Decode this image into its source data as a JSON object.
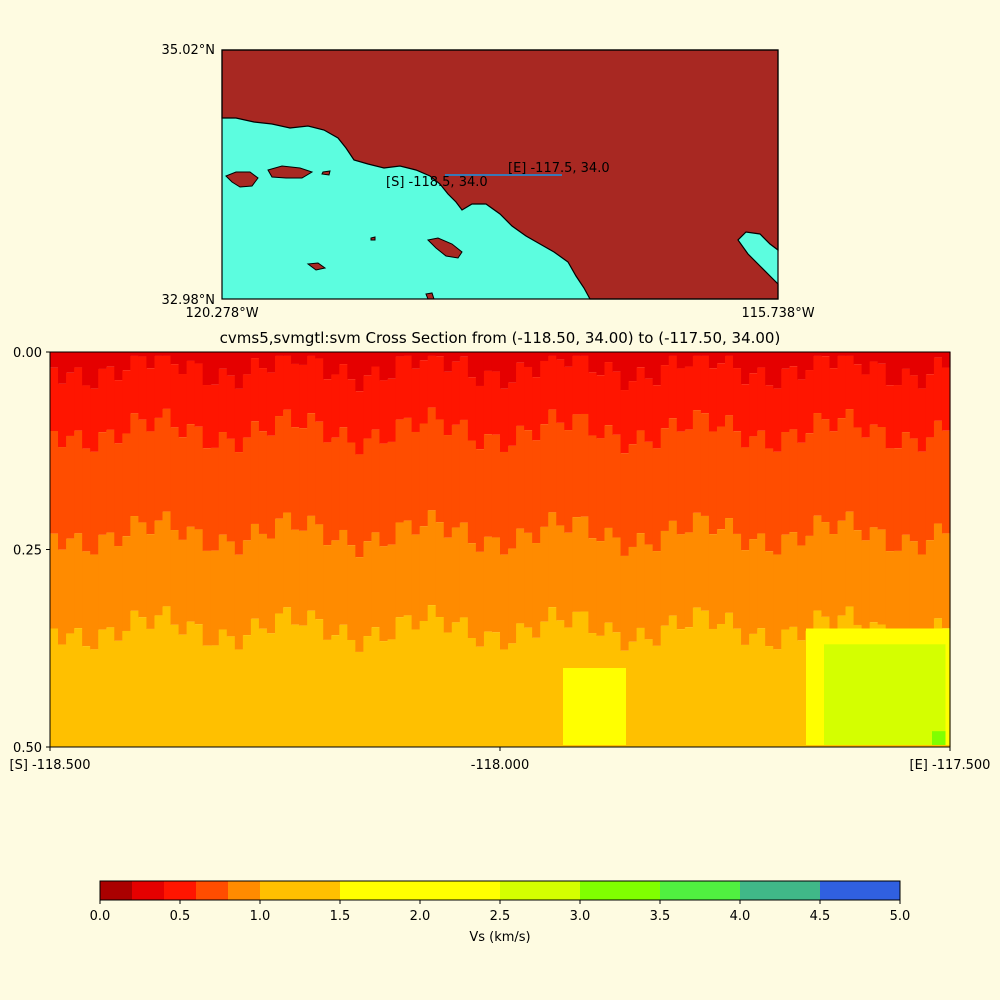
{
  "map": {
    "lat_top": "35.02°N",
    "lat_bottom": "32.98°N",
    "lon_left": "120.278°W",
    "lon_right": "115.738°W",
    "start_label": "[S] -118.5, 34.0",
    "end_label": "[E] -117.5, 34.0",
    "colors": {
      "land": "#a82822",
      "water": "#5cfddf",
      "line": "#3a78b5"
    }
  },
  "chart_data": {
    "type": "heatmap",
    "title": "cvms5,svmgtl:svm Cross Section from (-118.50, 34.00) to (-117.50, 34.00)",
    "x_range": [
      -118.5,
      -117.5
    ],
    "y_range": [
      0.0,
      0.5
    ],
    "x_ticks": [
      "[S] -118.500",
      "-118.000",
      "[E] -117.500"
    ],
    "y_ticks": [
      "0.00",
      "0.25",
      "0.50"
    ],
    "colorbar": {
      "label": "Vs (km/s)",
      "ticks": [
        "0.0",
        "0.5",
        "1.0",
        "1.5",
        "2.0",
        "2.5",
        "3.0",
        "3.5",
        "4.0",
        "4.5",
        "5.0"
      ],
      "bounds": [
        0,
        0.2,
        0.4,
        0.6,
        0.8,
        1.0,
        1.5,
        2.0,
        2.5,
        3.0,
        3.5,
        4.0,
        4.5,
        5.0
      ],
      "colors": [
        "#aa0000",
        "#e50000",
        "#ff1500",
        "#ff4d00",
        "#ff8b00",
        "#ffc000",
        "#ffff00",
        "#ffff00",
        "#d4ff00",
        "#80ff00",
        "#50f040",
        "#40b888",
        "#3060e0"
      ]
    },
    "velocity_layers": [
      {
        "depth_to": 0.02,
        "vs_min": 0.2,
        "vs_max": 0.4
      },
      {
        "depth_to": 0.1,
        "vs_min": 0.4,
        "vs_max": 0.6
      },
      {
        "depth_to": 0.23,
        "vs_min": 0.6,
        "vs_max": 0.8
      },
      {
        "depth_to": 0.35,
        "vs_min": 0.8,
        "vs_max": 1.0
      },
      {
        "depth_to": 0.5,
        "vs_min": 1.0,
        "vs_max": 1.5
      }
    ]
  }
}
